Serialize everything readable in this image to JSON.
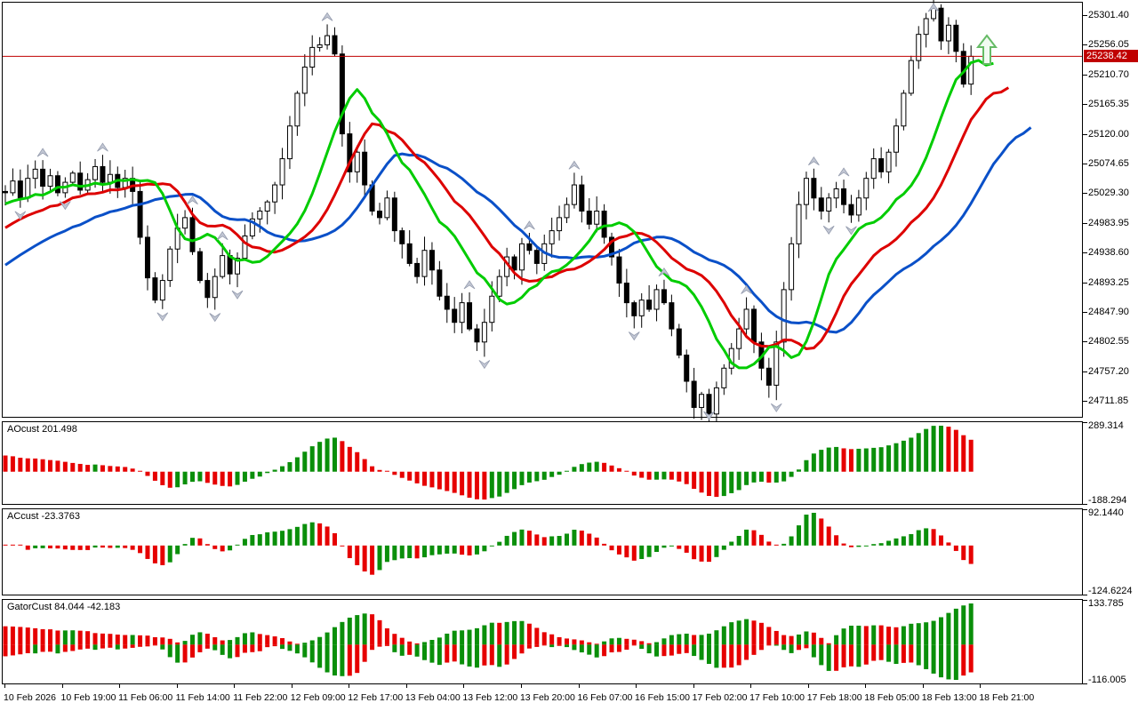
{
  "price_axis": {
    "current_price_label": "25238.42"
  },
  "time_axis": {
    "labels": [
      "10 Feb 2026",
      "10 Feb 19:00",
      "11 Feb 06:00",
      "11 Feb 14:00",
      "11 Feb 22:00",
      "12 Feb 09:00",
      "12 Feb 17:00",
      "13 Feb 04:00",
      "13 Feb 12:00",
      "13 Feb 20:00",
      "16 Feb 07:00",
      "16 Feb 15:00",
      "17 Feb 02:00",
      "17 Feb 10:00",
      "17 Feb 18:00",
      "18 Feb 05:00",
      "18 Feb 13:00",
      "18 Feb 21:00"
    ]
  },
  "chart_data": {
    "type": "candlestick",
    "title": "",
    "grid": false,
    "price_tick_labels": [
      "25301.40",
      "25256.05",
      "25210.70",
      "25165.35",
      "25120.00",
      "25074.65",
      "25029.30",
      "24983.95",
      "24938.60",
      "24893.25",
      "24847.90",
      "24802.55",
      "24757.20",
      "24711.85"
    ],
    "price_ticks": [
      25301.4,
      25256.05,
      25210.7,
      25165.35,
      25120.0,
      25074.65,
      25029.3,
      24983.95,
      24938.6,
      24893.25,
      24847.9,
      24802.55,
      24757.2,
      24711.85
    ],
    "current_price": 25238.42,
    "candles": {
      "count": 130,
      "closes": [
        25030,
        25048,
        25022,
        25052,
        25066,
        25040,
        25056,
        25030,
        25046,
        25060,
        25034,
        25050,
        25070,
        25046,
        25058,
        25038,
        25052,
        25032,
        24962,
        24900,
        24866,
        24896,
        24944,
        24976,
        24992,
        24940,
        24896,
        24870,
        24902,
        24934,
        24906,
        24930,
        24964,
        24990,
        25002,
        25016,
        25042,
        25082,
        25132,
        25182,
        25222,
        25252,
        25256,
        25270,
        25242,
        25120,
        25062,
        25092,
        25042,
        25002,
        24992,
        25022,
        24972,
        24952,
        24922,
        24902,
        24942,
        24912,
        24872,
        24852,
        24832,
        24862,
        24822,
        24802,
        24832,
        24872,
        24902,
        24932,
        24912,
        24952,
        24942,
        24922,
        24952,
        24972,
        24992,
        25012,
        25042,
        25002,
        24982,
        25002,
        24962,
        24932,
        24892,
        24862,
        24842,
        24866,
        24852,
        24882,
        24862,
        24822,
        24782,
        24742,
        24702,
        24722,
        24692,
        24732,
        24762,
        24792,
        24822,
        24852,
        24802,
        24762,
        24736,
        24802,
        24882,
        24952,
        25012,
        25052,
        25022,
        25002,
        25022,
        25036,
        25012,
        24996,
        25022,
        25052,
        25082,
        25062,
        25092,
        25132,
        25182,
        25232,
        25272,
        25296,
        25312,
        25262,
        25286,
        25246,
        25196,
        25238.42
      ],
      "pre_history_closes": [
        24760,
        24770,
        24782,
        24790,
        24800,
        24812,
        24820,
        24832,
        24840,
        24852,
        24862,
        24872,
        24880,
        24892,
        24900,
        24912,
        24920,
        24932,
        24940,
        24950,
        24962,
        24970,
        24980,
        24990,
        25000,
        25008,
        25014,
        25020,
        25026,
        25030,
        25032,
        25034,
        25034,
        25032
      ]
    },
    "moving_averages": [
      {
        "name": "alligator-lips",
        "period": 5,
        "shift": 3,
        "color": "#00cc00"
      },
      {
        "name": "alligator-teeth",
        "period": 8,
        "shift": 5,
        "color": "#dd0000"
      },
      {
        "name": "alligator-jaw",
        "period": 13,
        "shift": 8,
        "color": "#0a50c8"
      }
    ],
    "panels": [
      {
        "name": "AOcust",
        "label": "AOcust 201.498",
        "axis_max": 289.314,
        "axis_min": -188.294,
        "axis_max_label": "289.314",
        "axis_min_label": "-188.294"
      },
      {
        "name": "ACcust",
        "label": "ACcust -23.3763",
        "axis_max": 92.144,
        "axis_min": -124.6224,
        "axis_max_label": "92.1440",
        "axis_min_label": "-124.6224"
      },
      {
        "name": "GatorCust",
        "label": "GatorCust 84.044 -42.183",
        "axis_max": 133.785,
        "axis_min": -116.005,
        "axis_max_label": "133.785",
        "axis_min_label": "-116.005"
      }
    ],
    "signal_arrow": {
      "direction": "up",
      "outline": "#66bb66",
      "fill": "#f2fbf2"
    },
    "colors": {
      "bull_body": "#ffffff",
      "bear_body": "#000000",
      "candle_outline": "#000000",
      "hist_up": "#0a8f0a",
      "hist_down": "#e60000",
      "price_line": "#c00000",
      "badge_bg": "#c00000",
      "badge_text": "#ffffff",
      "fractal_fill": "#c2c7d4",
      "fractal_stroke": "#959cae"
    }
  }
}
